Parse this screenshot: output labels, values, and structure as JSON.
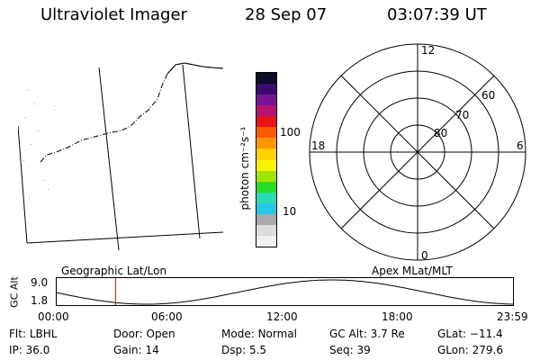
{
  "header": {
    "title": "Ultraviolet Imager",
    "date": "28 Sep 07",
    "time": "03:07:39 UT"
  },
  "colorbar": {
    "label": "photon cm⁻²s⁻¹",
    "ticks": [
      "100",
      "10"
    ],
    "colors": [
      "#0c0c2a",
      "#3c0a6e",
      "#7a1496",
      "#b4146e",
      "#e61414",
      "#ff5a00",
      "#ff9600",
      "#ffd200",
      "#f5f500",
      "#a0e600",
      "#28dc28",
      "#28dcb4",
      "#28c8e6",
      "#aaaaaa",
      "#dcdcdc",
      "#f0f0f0"
    ]
  },
  "polar": {
    "mlt_labels": {
      "top": "12",
      "right": "6",
      "bottom": "0",
      "left": "18"
    },
    "lat_labels": [
      "60",
      "70",
      "80"
    ]
  },
  "map_captions": {
    "left": "Geographic Lat/Lon",
    "right": "Apex MLat/MLT"
  },
  "timeline": {
    "ylabel": "GC Alt",
    "yticks": [
      "9.0",
      "1.8"
    ],
    "xticks": [
      "00:00",
      "06:00",
      "12:00",
      "18:00",
      "23:59"
    ],
    "marker_time_hours": 3.13,
    "marker_color": "#e00000"
  },
  "footer": {
    "row1": [
      {
        "label": "Flt:",
        "value": "LBHL"
      },
      {
        "label": "Door:",
        "value": "Open"
      },
      {
        "label": "Mode:",
        "value": "Normal"
      },
      {
        "label": "GC Alt:",
        "value": "3.7 Re"
      },
      {
        "label": "GLat:",
        "value": "−11.4"
      }
    ],
    "row2": [
      {
        "label": "IP:",
        "value": "36.0"
      },
      {
        "label": "Gain:",
        "value": "14"
      },
      {
        "label": "Dsp:",
        "value": "5.5"
      },
      {
        "label": "Seq:",
        "value": "39"
      },
      {
        "label": "GLon:",
        "value": "279.6"
      }
    ]
  }
}
